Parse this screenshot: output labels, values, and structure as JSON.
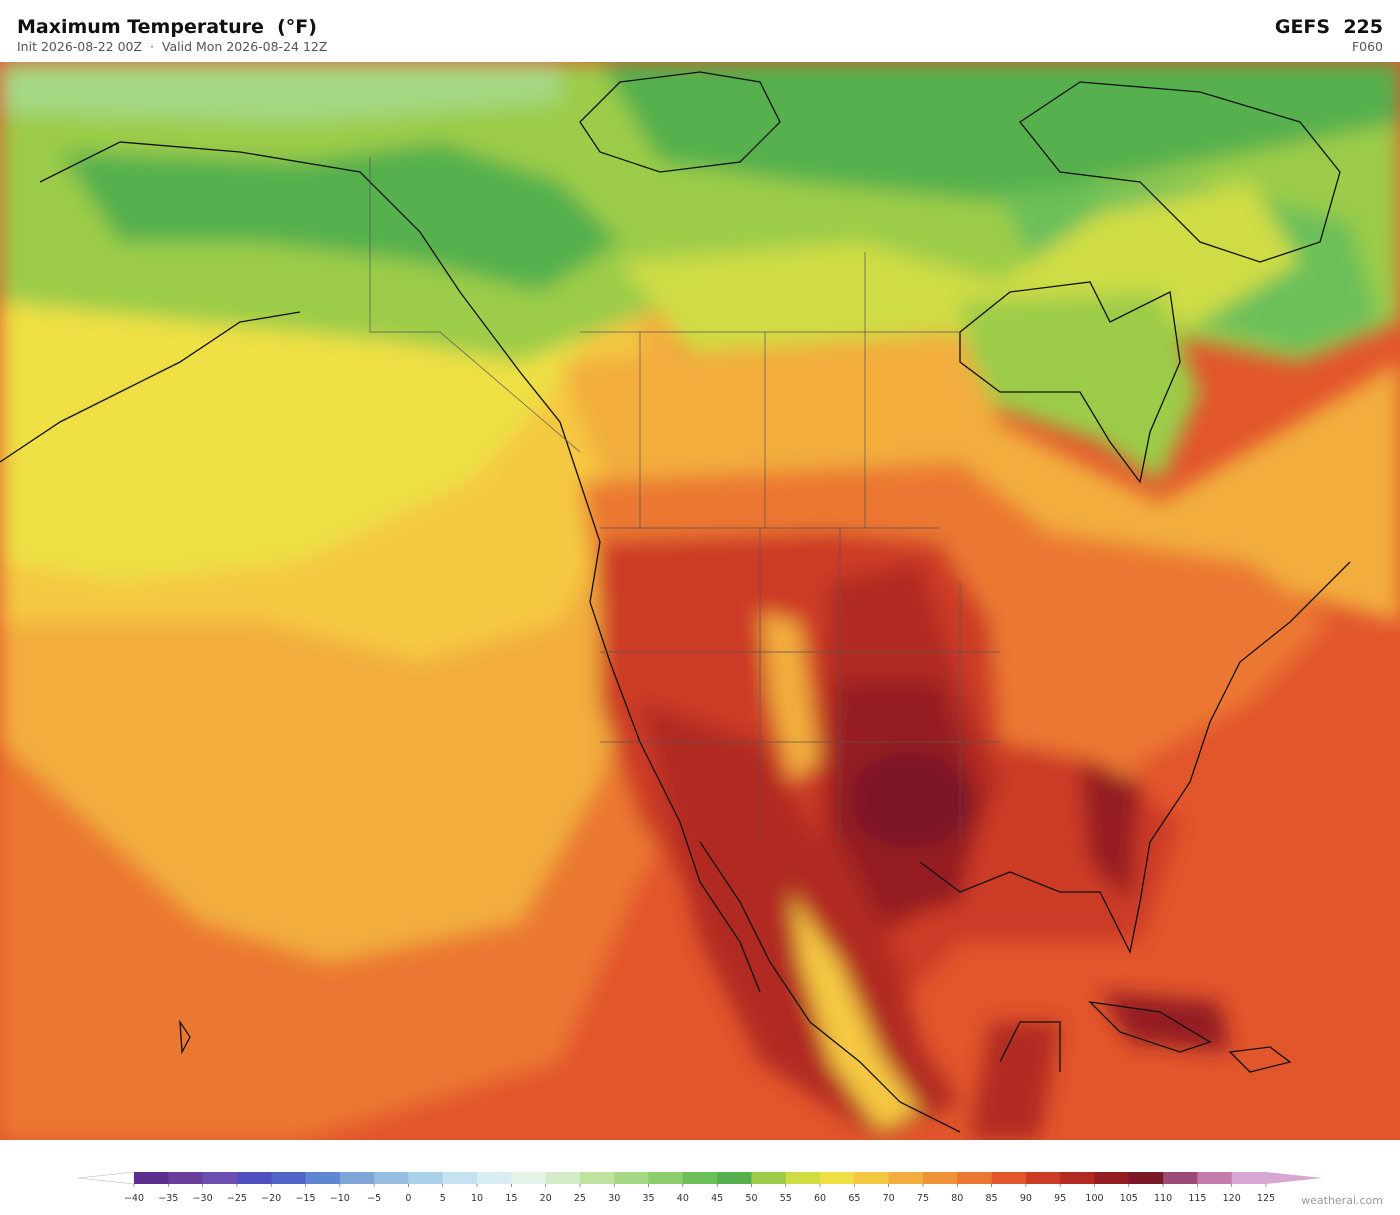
{
  "header": {
    "title": "Maximum Temperature  (°F)",
    "subtitle": "Init 2026-08-22 00Z  ·  Valid Mon 2026-08-24 12Z",
    "model": "GEFS  225",
    "forecast_hour": "F060"
  },
  "colorbar": {
    "ticks": [
      {
        "value": -40,
        "label": "−40"
      },
      {
        "value": -35,
        "label": "−35"
      },
      {
        "value": -30,
        "label": "−30"
      },
      {
        "value": -25,
        "label": "−25"
      },
      {
        "value": -20,
        "label": "−20"
      },
      {
        "value": -15,
        "label": "−15"
      },
      {
        "value": -10,
        "label": "−10"
      },
      {
        "value": -5,
        "label": "−5"
      },
      0,
      5,
      10,
      15,
      20,
      25,
      30,
      35,
      40,
      45,
      50,
      55,
      60,
      65,
      70,
      75,
      80,
      85,
      90,
      95,
      100,
      105,
      110,
      115,
      120,
      125
    ],
    "colors": [
      "#5b2d8e",
      "#6a3d9a",
      "#6a4fb0",
      "#4f4fbf",
      "#4f63c9",
      "#5f86d1",
      "#7fa5d8",
      "#94bde0",
      "#a9d2ea",
      "#c4e2ef",
      "#d8eef2",
      "#e6f4ea",
      "#d4ecc8",
      "#bfe2a0",
      "#a5d884",
      "#8ccd6e",
      "#6cc05a",
      "#55b04d",
      "#9ccc48",
      "#cfdc44",
      "#eee044",
      "#f5c842",
      "#f2ad3e",
      "#ef9238",
      "#eb7832",
      "#e2562c",
      "#cc3b26",
      "#b12a24",
      "#941d22",
      "#7b1825",
      "#9c4a78",
      "#c57aae",
      "#d8a6d4"
    ],
    "under_color": "#ffffff",
    "over_color": "#d8a6d4"
  },
  "credit": "weatherai.com"
}
